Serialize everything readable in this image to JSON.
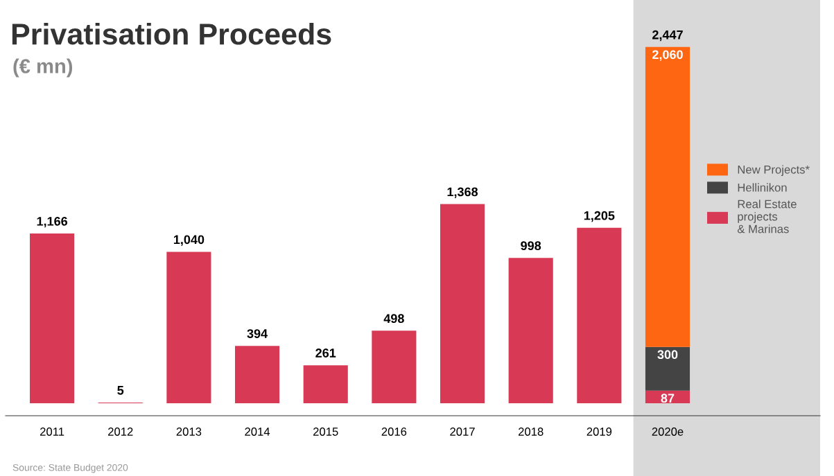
{
  "chart_data": {
    "type": "bar",
    "title": "Privatisation Proceeds",
    "subtitle": "(€ mn)",
    "stacked": true,
    "categories": [
      "2011",
      "2012",
      "2013",
      "2014",
      "2015",
      "2016",
      "2017",
      "2018",
      "2019",
      "2020e"
    ],
    "series": [
      {
        "name": "Real Estate\nprojects\n& Marinas",
        "color": "#d83a56",
        "values": [
          1166,
          5,
          1040,
          394,
          261,
          498,
          1368,
          998,
          1205,
          87
        ],
        "value_labels": [
          "1,166",
          "5",
          "1,040",
          "394",
          "261",
          "498",
          "1,368",
          "998",
          "1,205",
          "87"
        ]
      },
      {
        "name": "Hellinikon",
        "color": "#444444",
        "values": [
          null,
          null,
          null,
          null,
          null,
          null,
          null,
          null,
          null,
          300
        ],
        "value_labels": [
          null,
          null,
          null,
          null,
          null,
          null,
          null,
          null,
          null,
          "300"
        ]
      },
      {
        "name": "New Projects*",
        "color": "#fe6612",
        "values": [
          null,
          null,
          null,
          null,
          null,
          null,
          null,
          null,
          null,
          2060
        ],
        "value_labels": [
          null,
          null,
          null,
          null,
          null,
          null,
          null,
          null,
          null,
          "2,060"
        ]
      }
    ],
    "totals": [
      null,
      null,
      null,
      null,
      null,
      null,
      null,
      null,
      null,
      "2,447"
    ],
    "bands": [
      {
        "axis": "x",
        "from": "2020e",
        "to": "2020e",
        "color": "#d9d9d9"
      }
    ],
    "legend": "right",
    "annotations": [
      "Source: State Budget 2020"
    ]
  }
}
